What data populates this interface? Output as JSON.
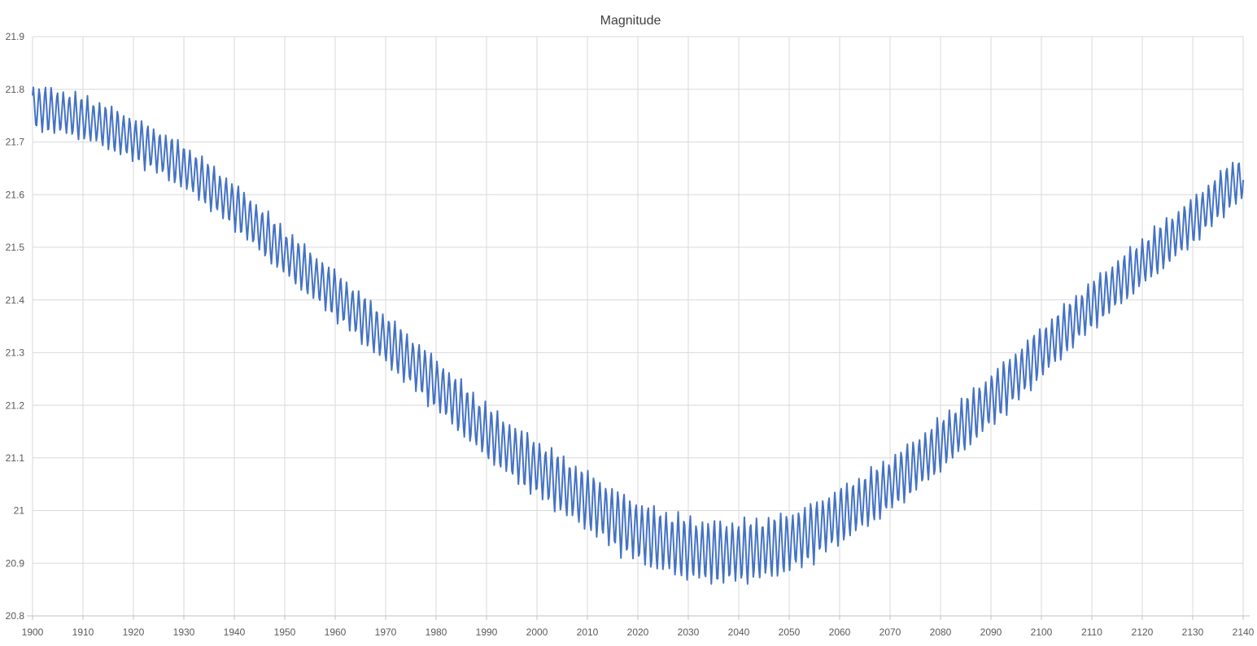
{
  "chart_data": {
    "type": "line",
    "title": "Magnitude",
    "xlabel": "",
    "ylabel": "",
    "xlim": [
      1900,
      2140
    ],
    "ylim": [
      20.8,
      21.9
    ],
    "grid": true,
    "legend": false,
    "x_axis": {
      "tick_values": [
        1900,
        1910,
        1920,
        1930,
        1940,
        1950,
        1960,
        1970,
        1980,
        1990,
        2000,
        2010,
        2020,
        2030,
        2040,
        2050,
        2060,
        2070,
        2080,
        2090,
        2100,
        2110,
        2120,
        2130,
        2140
      ],
      "tick_labels": [
        "1900",
        "1910",
        "1920",
        "1930",
        "1940",
        "1950",
        "1960",
        "1970",
        "1980",
        "1990",
        "2000",
        "2010",
        "2020",
        "2030",
        "2040",
        "2050",
        "2060",
        "2070",
        "2080",
        "2090",
        "2100",
        "2110",
        "2120",
        "2130",
        "2140"
      ]
    },
    "y_axis": {
      "tick_values": [
        20.8,
        20.9,
        21.0,
        21.1,
        21.2,
        21.3,
        21.4,
        21.5,
        21.6,
        21.7,
        21.8,
        21.9
      ],
      "tick_labels": [
        "20.8",
        "20.9",
        "21",
        "21.1",
        "21.2",
        "21.3",
        "21.4",
        "21.5",
        "21.6",
        "21.7",
        "21.8",
        "21.9"
      ]
    },
    "series": [
      {
        "name": "Magnitude",
        "color": "#4472C4",
        "description": "Dense annual-style oscillation (~1.2 yr apparent period, ~200 cycles) riding on a slow envelope: dimmest ~21.81 near 1900, brightest ~20.87 around 2030-2045, rising again to ~21.67 by 2140.",
        "oscillation_period_years": 1.195,
        "envelope_years": [
          1900,
          1910,
          1920,
          1930,
          1940,
          1950,
          1960,
          1970,
          1980,
          1990,
          2000,
          2010,
          2020,
          2030,
          2040,
          2050,
          2060,
          2070,
          2080,
          2090,
          2100,
          2110,
          2120,
          2130,
          2140
        ],
        "envelope_center_mag": [
          21.765,
          21.745,
          21.705,
          21.652,
          21.578,
          21.49,
          21.41,
          21.325,
          21.24,
          21.15,
          21.08,
          21.018,
          20.96,
          20.928,
          20.922,
          20.94,
          20.99,
          21.05,
          21.125,
          21.21,
          21.3,
          21.39,
          21.47,
          21.55,
          21.63
        ],
        "oscillation_half_amplitude_mag": [
          0.045,
          0.044,
          0.044,
          0.045,
          0.046,
          0.047,
          0.048,
          0.05,
          0.052,
          0.054,
          0.057,
          0.059,
          0.061,
          0.062,
          0.062,
          0.06,
          0.056,
          0.054,
          0.053,
          0.053,
          0.051,
          0.049,
          0.048,
          0.047,
          0.046
        ],
        "min_mag_approx": 20.87,
        "max_mag_approx": 21.81
      }
    ]
  },
  "colors": {
    "line": "#4472C4",
    "gridline": "#D9D9D9",
    "axis_line": "#C0C0C0",
    "tick_mark": "#C0C0C0",
    "axis_label": "#595959",
    "title": "#404040",
    "background": "#FFFFFF"
  }
}
